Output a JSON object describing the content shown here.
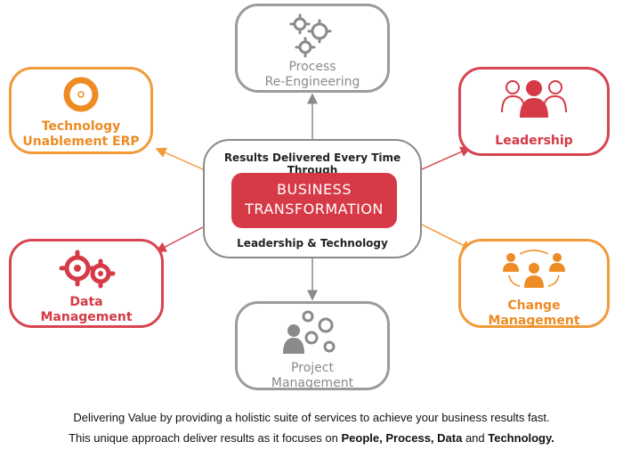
{
  "center": {
    "top_text": "Results Delivered Every Time Through",
    "title_line1": "BUSINESS",
    "title_line2": "TRANSFORMATION",
    "bottom_text": "Leadership & Technology"
  },
  "nodes": {
    "process": {
      "line1": "Process",
      "line2": "Re-Engineering"
    },
    "leadership": {
      "line1": "Leadership"
    },
    "change": {
      "line1": "Change",
      "line2": "Management"
    },
    "project": {
      "line1": "Project",
      "line2": "Management"
    },
    "data": {
      "line1": "Data",
      "line2": "Management"
    },
    "technology": {
      "line1": "Technology",
      "line2": "Unablement ERP"
    }
  },
  "footer": {
    "line1": "Delivering Value by providing a holistic suite of services to achieve your business results fast.",
    "line2_prefix": "This unique approach deliver results as it focuses on ",
    "line2_bold1": "People, Process, Data",
    "line2_mid": " and ",
    "line2_bold2": "Technology."
  },
  "colors": {
    "red": "#d63a47",
    "orange": "#ee8b23",
    "grey": "#8a8a8a"
  }
}
